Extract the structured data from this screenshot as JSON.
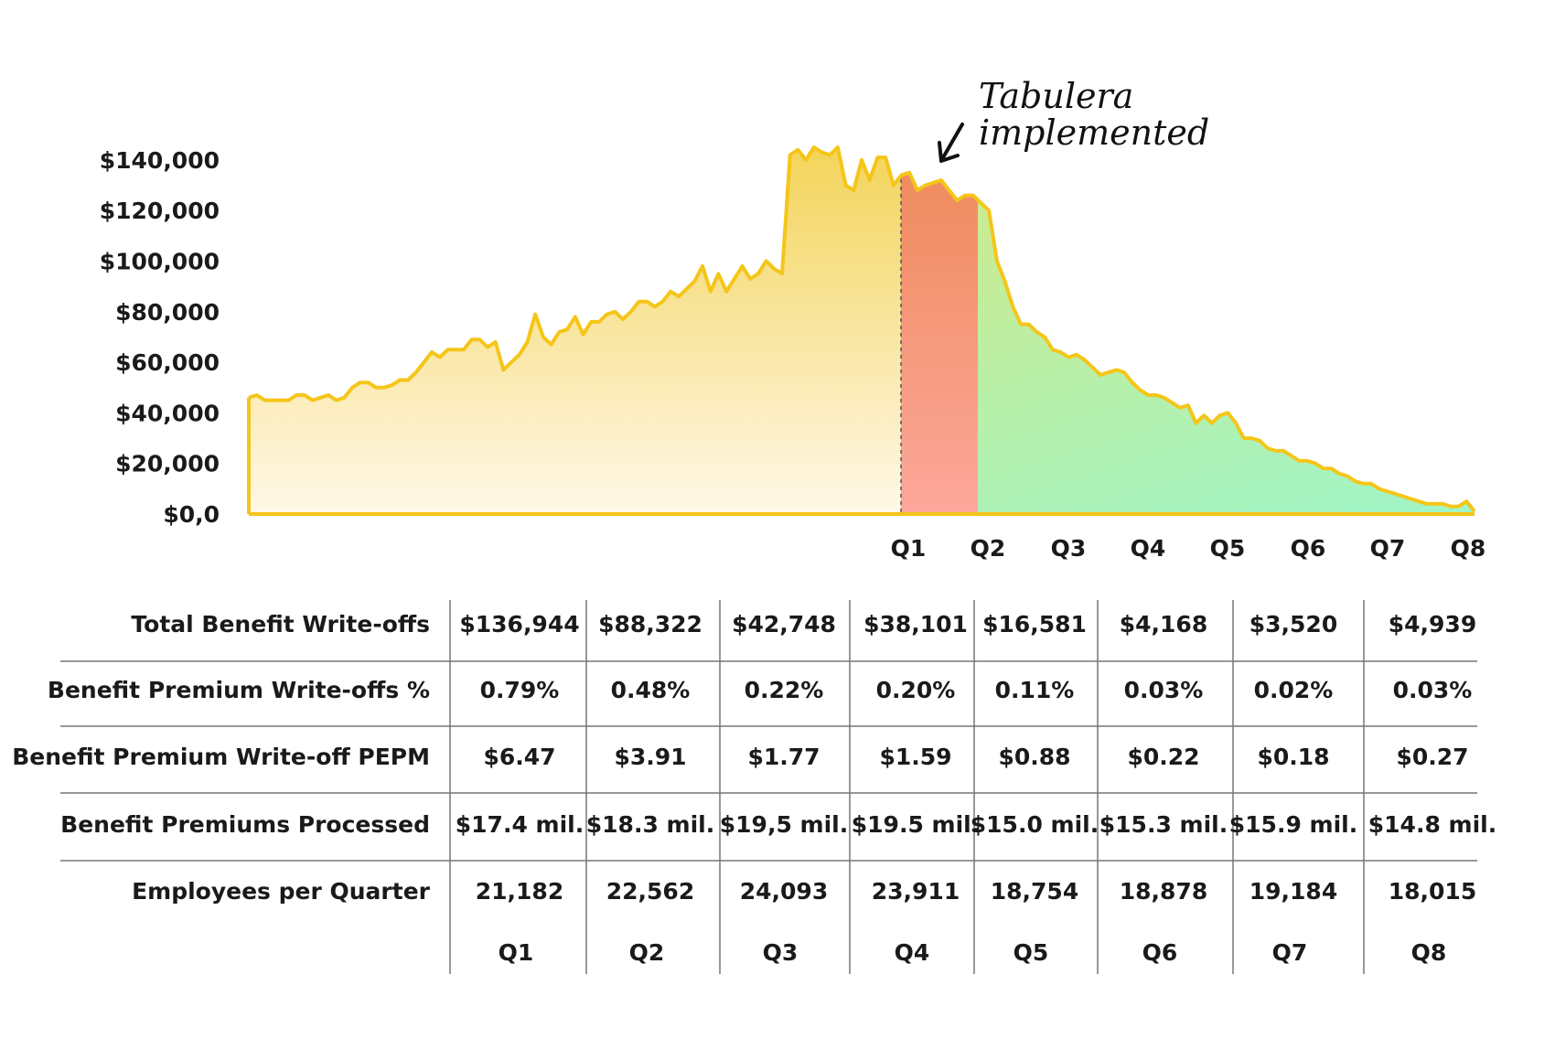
{
  "chart_data": {
    "type": "area",
    "annotation": "Tabulera implemented",
    "y_ticks": [
      "$140,000",
      "$120,000",
      "$100,000",
      "$80,000",
      "$60,000",
      "$40,000",
      "$20,000",
      "$0,0"
    ],
    "ylim": [
      0,
      150000
    ],
    "x_ticks": [
      "Q1",
      "Q2",
      "Q3",
      "Q4",
      "Q5",
      "Q6",
      "Q7",
      "Q8"
    ],
    "colors": {
      "line": "#f5c518",
      "pre_top": "#f3d45a",
      "pre_bottom": "#fff8e8",
      "implementation_top": "#ee8a5a",
      "implementation_bottom": "#fda79b",
      "post_top": "#e6e56e",
      "post_bottom": "#9ff5c8"
    },
    "series": [
      {
        "values": [
          46000,
          47000,
          45000,
          45000,
          45000,
          45000,
          47000,
          47000,
          45000,
          46000,
          47000,
          45000,
          46000,
          50000,
          52000,
          52000,
          50000,
          50000,
          51000,
          53000,
          53000,
          56000,
          60000,
          64000,
          62000,
          65000,
          65000,
          65000,
          69000,
          69000,
          66000,
          68000,
          57000,
          60000,
          63000,
          68000,
          79000,
          70000,
          67000,
          72000,
          73000,
          78000,
          71000,
          76000,
          76000,
          79000,
          80000,
          77000,
          80000,
          84000,
          84000,
          82000,
          84000,
          88000,
          86000,
          89000,
          92000,
          98000,
          88000,
          95000,
          88000,
          93000,
          98000,
          93000,
          95000,
          100000,
          97000,
          95000,
          142000,
          144000,
          140000,
          145000,
          143000,
          142000,
          145000,
          130000,
          128000,
          140000,
          132000,
          141000,
          141000,
          130000,
          134000,
          135000,
          128000,
          130000,
          131000,
          132000,
          128000,
          124000,
          126000,
          126000,
          123000,
          120000,
          100000,
          92000,
          82000,
          75000,
          75000,
          72000,
          70000,
          65000,
          64000,
          62000,
          63000,
          61000,
          58000,
          55000,
          56000,
          57000,
          56000,
          52000,
          49000,
          47000,
          47000,
          46000,
          44000,
          42000,
          43000,
          36000,
          39000,
          36000,
          39000,
          40000,
          36000,
          30000,
          30000,
          29000,
          26000,
          25000,
          25000,
          23000,
          21000,
          21000,
          20000,
          18000,
          18000,
          16000,
          15000,
          13000,
          12000,
          12000,
          10000,
          9000,
          8000,
          7000,
          6000,
          5000,
          4000,
          4000,
          4000,
          3000,
          3000,
          5000,
          1000
        ]
      }
    ],
    "table": {
      "quarters": [
        "Q1",
        "Q2",
        "Q3",
        "Q4",
        "Q5",
        "Q6",
        "Q7",
        "Q8"
      ],
      "rows": [
        {
          "label": "Total Benefit Write-offs",
          "values": [
            "$136,944",
            "$88,322",
            "$42,748",
            "$38,101",
            "$16,581",
            "$4,168",
            "$3,520",
            "$4,939"
          ]
        },
        {
          "label": "Benefit Premium Write-offs %",
          "values": [
            "0.79%",
            "0.48%",
            "0.22%",
            "0.20%",
            "0.11%",
            "0.03%",
            "0.02%",
            "0.03%"
          ]
        },
        {
          "label": "Benefit Premium Write-off PEPM",
          "values": [
            "$6.47",
            "$3.91",
            "$1.77",
            "$1.59",
            "$0.88",
            "$0.22",
            "$0.18",
            "$0.27"
          ]
        },
        {
          "label": "Benefit Premiums Processed",
          "values": [
            "$17.4 mil.",
            "$18.3 mil.",
            "$19,5 mil.",
            "$19.5 mil.",
            "$15.0 mil.",
            "$15.3 mil.",
            "$15.9 mil.",
            "$14.8 mil."
          ]
        },
        {
          "label": "Employees per Quarter",
          "values": [
            "21,182",
            "22,562",
            "24,093",
            "23,911",
            "18,754",
            "18,878",
            "19,184",
            "18,015"
          ]
        }
      ]
    }
  }
}
